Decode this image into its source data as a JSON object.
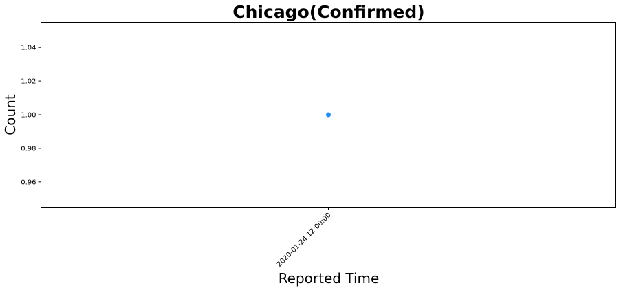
{
  "chart_data": {
    "type": "scatter",
    "title": "Chicago(Confirmed)",
    "xlabel": "Reported Time",
    "ylabel": "Count",
    "x_ticks": [
      "2020-01-24 12:00:00"
    ],
    "y_ticks": [
      "0.96",
      "0.98",
      "1.00",
      "1.02",
      "1.04"
    ],
    "y_tick_values": [
      0.96,
      0.98,
      1.0,
      1.02,
      1.04
    ],
    "ylim": [
      0.945,
      1.055
    ],
    "grid": false,
    "legend": "none",
    "series": [
      {
        "color": "#1e90ff",
        "points": [
          {
            "x": "2020-01-24 12:00:00",
            "y": 1.0
          }
        ]
      }
    ]
  }
}
